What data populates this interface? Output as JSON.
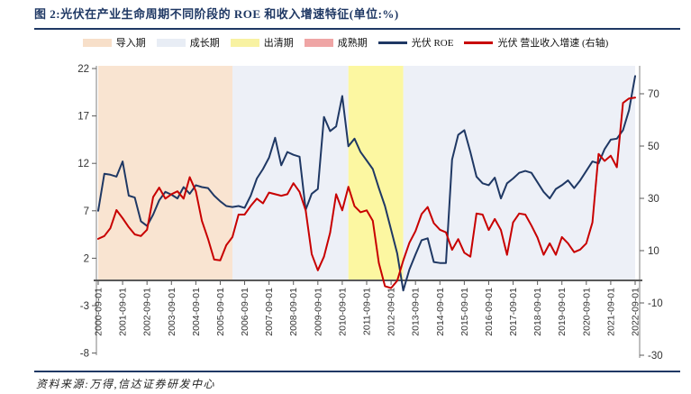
{
  "figure": {
    "title": "图 2:光伏在产业生命周期不同阶段的 ROE 和收入增速特征(单位:%)",
    "source": "资料来源:万得,信达证券研发中心",
    "accent_color": "#1f3864"
  },
  "legend": [
    {
      "label": "导入期",
      "type": "band",
      "color": "#f7dfc9"
    },
    {
      "label": "成长期",
      "type": "band",
      "color": "#e8edf5"
    },
    {
      "label": "出清期",
      "type": "band",
      "color": "#f8f2a2"
    },
    {
      "label": "成熟期",
      "type": "band",
      "color": "#efa5a5"
    },
    {
      "label": "光伏 ROE",
      "type": "line",
      "color": "#1f3864"
    },
    {
      "label": "光伏 营业收入增速 (右轴)",
      "type": "line",
      "color": "#c80000"
    }
  ],
  "chart_data": {
    "type": "line",
    "title": "光伏在产业生命周期不同阶段的 ROE 和收入增速特征",
    "unit": "%",
    "grid": false,
    "legend_position": "top",
    "x": [
      "2000-09-01",
      "2000-12-01",
      "2001-03-01",
      "2001-06-01",
      "2001-09-01",
      "2001-12-01",
      "2002-03-01",
      "2002-06-01",
      "2002-09-01",
      "2002-12-01",
      "2003-03-01",
      "2003-06-01",
      "2003-09-01",
      "2003-12-01",
      "2004-03-01",
      "2004-06-01",
      "2004-09-01",
      "2004-12-01",
      "2005-03-01",
      "2005-06-01",
      "2005-09-01",
      "2005-12-01",
      "2006-03-01",
      "2006-06-01",
      "2006-09-01",
      "2006-12-01",
      "2007-03-01",
      "2007-06-01",
      "2007-09-01",
      "2007-12-01",
      "2008-03-01",
      "2008-06-01",
      "2008-09-01",
      "2008-12-01",
      "2009-03-01",
      "2009-06-01",
      "2009-09-01",
      "2009-12-01",
      "2010-03-01",
      "2010-06-01",
      "2010-09-01",
      "2010-12-01",
      "2011-03-01",
      "2011-06-01",
      "2011-09-01",
      "2011-12-01",
      "2012-03-01",
      "2012-06-01",
      "2012-09-01",
      "2012-12-01",
      "2013-03-01",
      "2013-06-01",
      "2013-09-01",
      "2013-12-01",
      "2014-03-01",
      "2014-06-01",
      "2014-09-01",
      "2014-12-01",
      "2015-03-01",
      "2015-06-01",
      "2015-09-01",
      "2015-12-01",
      "2016-03-01",
      "2016-06-01",
      "2016-09-01",
      "2016-12-01",
      "2017-03-01",
      "2017-06-01",
      "2017-09-01",
      "2017-12-01",
      "2018-03-01",
      "2018-06-01",
      "2018-09-01",
      "2018-12-01",
      "2019-03-01",
      "2019-06-01",
      "2019-09-01",
      "2019-12-01",
      "2020-03-01",
      "2020-06-01",
      "2020-09-01",
      "2020-12-01",
      "2021-03-01",
      "2021-06-01",
      "2021-09-01",
      "2021-12-01",
      "2022-03-01",
      "2022-06-01",
      "2022-09-01"
    ],
    "left_axis": {
      "ticks": [
        22,
        17,
        12,
        7,
        2,
        -3,
        -8
      ],
      "range": [
        -8,
        22
      ]
    },
    "right_axis": {
      "ticks": [
        70,
        50,
        30,
        10,
        -10,
        -30
      ],
      "range": [
        -30,
        70
      ]
    },
    "bands": [
      {
        "label": "导入期",
        "start": "2000-09-01",
        "end": "2006-03-01",
        "color": "#f9e4d1"
      },
      {
        "label": "成长期",
        "start": "2006-03-01",
        "end": "2010-12-01",
        "color": "#edf0f7"
      },
      {
        "label": "出清期",
        "start": "2010-12-01",
        "end": "2013-03-01",
        "color": "#fcf7a1"
      },
      {
        "label": "成长期",
        "start": "2013-03-01",
        "end": "2022-09-01",
        "color": "#edf0f7"
      }
    ],
    "series": [
      {
        "name": "光伏 ROE",
        "axis": "left",
        "color": "#1f3864",
        "values": [
          7.0,
          10.9,
          10.8,
          10.6,
          12.2,
          8.6,
          8.4,
          5.9,
          5.4,
          6.6,
          8.1,
          9.0,
          8.7,
          8.3,
          9.5,
          8.8,
          9.7,
          9.5,
          9.4,
          8.6,
          8.0,
          7.5,
          7.4,
          7.5,
          7.3,
          8.6,
          10.4,
          11.4,
          12.6,
          14.7,
          11.8,
          13.2,
          12.9,
          12.7,
          7.1,
          8.8,
          9.3,
          16.9,
          15.4,
          15.9,
          19.1,
          13.8,
          14.6,
          13.2,
          12.3,
          11.4,
          9.4,
          7.5,
          5.0,
          2.5,
          -1.4,
          0.8,
          2.4,
          3.9,
          4.1,
          1.6,
          1.5,
          1.5,
          12.4,
          15.0,
          15.5,
          13.2,
          10.6,
          9.9,
          9.7,
          10.5,
          8.3,
          9.9,
          10.4,
          11.0,
          11.2,
          11.0,
          10.0,
          9.0,
          8.3,
          9.3,
          9.7,
          10.2,
          9.4,
          10.2,
          11.2,
          12.2,
          12.0,
          13.5,
          14.5,
          14.6,
          15.5,
          17.6,
          21.2
        ]
      },
      {
        "name": "光伏 营业收入增速 (右轴)",
        "axis": "right",
        "color": "#c80000",
        "values": [
          14.5,
          15.6,
          18.6,
          25.5,
          22.4,
          19.0,
          16.2,
          15.6,
          18.0,
          30.5,
          34.1,
          29.9,
          31.6,
          32.7,
          29.9,
          38.1,
          32.7,
          21.4,
          14.5,
          6.6,
          6.3,
          12.1,
          15.2,
          23.8,
          23.8,
          27.1,
          29.9,
          28.1,
          32.2,
          31.6,
          31.0,
          31.6,
          35.8,
          32.5,
          25.4,
          8.7,
          2.5,
          7.7,
          16.8,
          31.6,
          25.4,
          34.4,
          27.0,
          24.7,
          25.4,
          21.4,
          5.3,
          -3.6,
          -4.3,
          -1.5,
          6.2,
          13.0,
          17.5,
          24.0,
          26.7,
          20.5,
          18.0,
          17.0,
          10.3,
          14.4,
          9.2,
          7.7,
          24.2,
          23.8,
          17.9,
          22.1,
          17.9,
          8.4,
          20.8,
          24.2,
          23.8,
          19.6,
          15.0,
          8.4,
          12.8,
          8.4,
          15.2,
          12.8,
          9.4,
          10.4,
          12.8,
          20.8,
          47.0,
          44.3,
          46.3,
          41.9,
          66.5,
          68.2,
          68.5
        ]
      }
    ]
  }
}
